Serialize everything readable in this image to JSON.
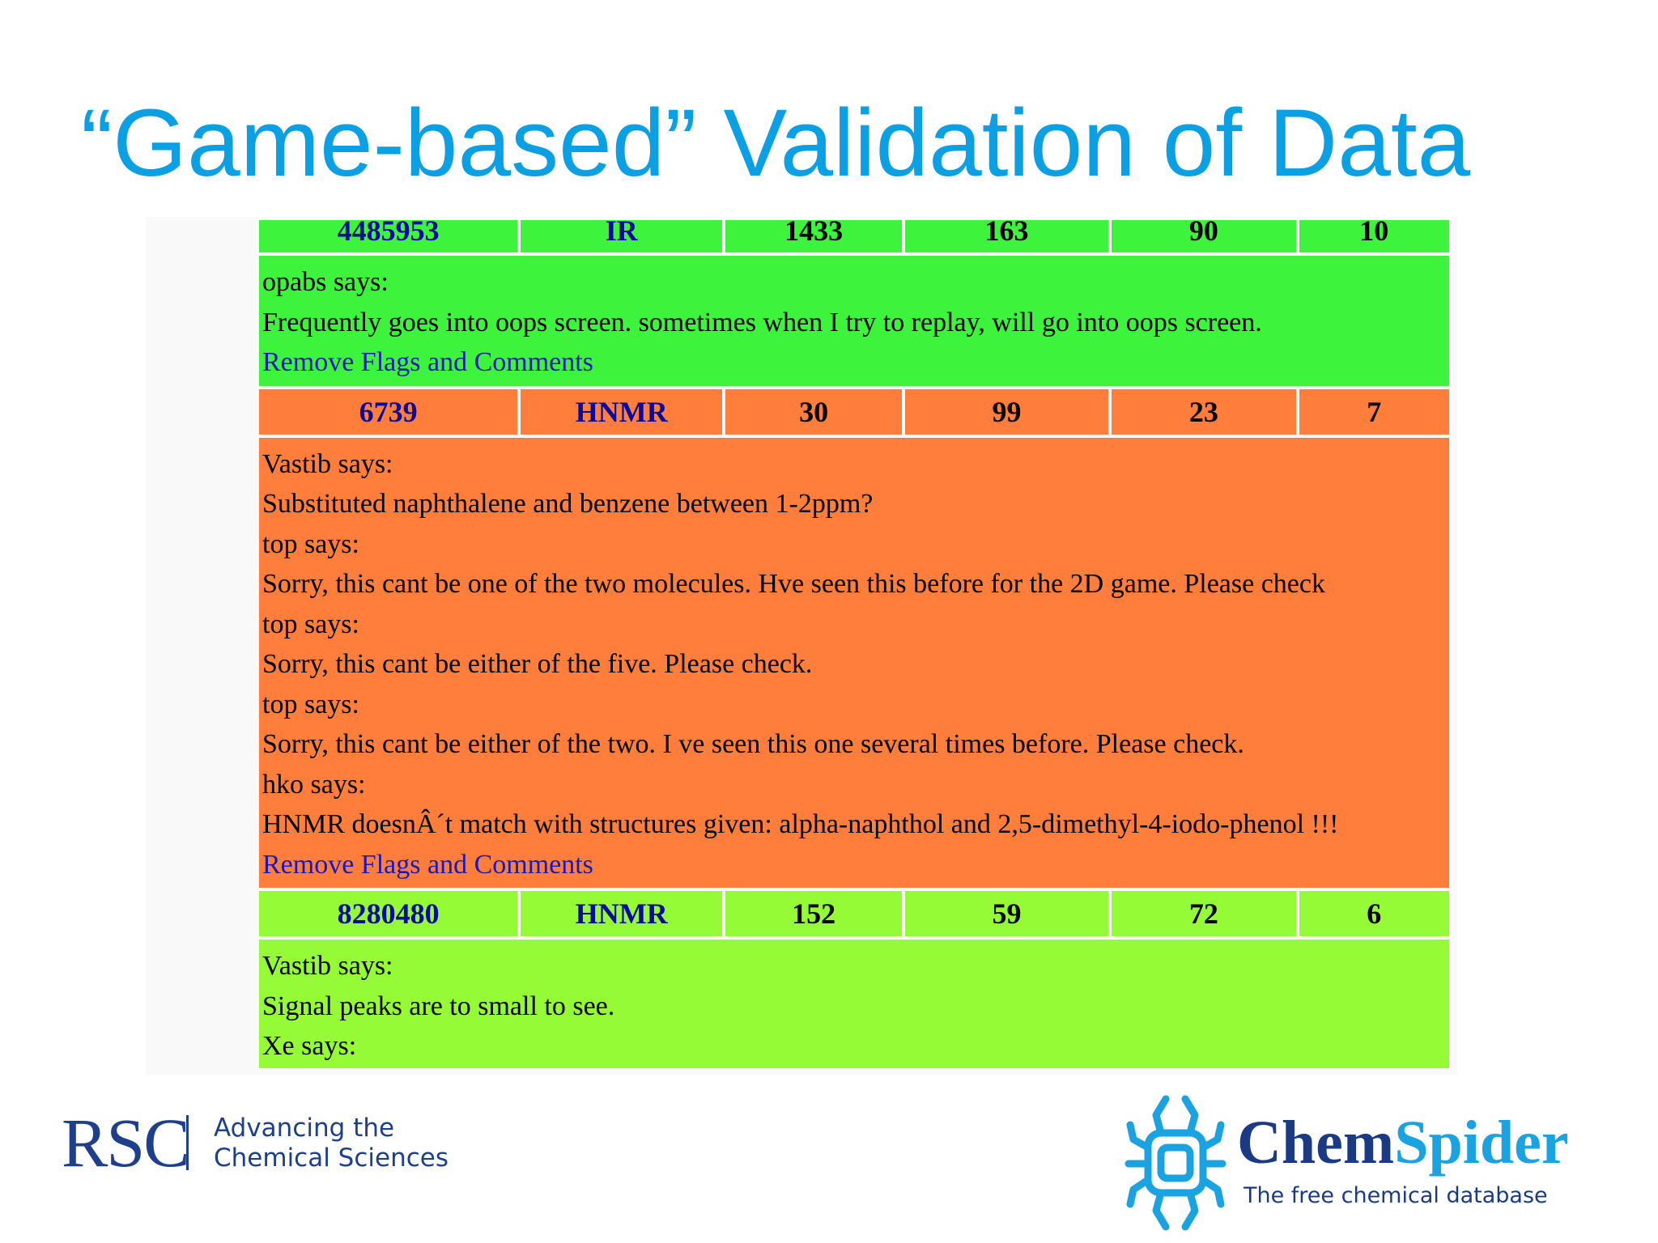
{
  "slide": {
    "title": "“Game-based” Validation of Data"
  },
  "records": [
    {
      "cells": [
        "4485953",
        "IR",
        "1433",
        "163",
        "90",
        "10"
      ],
      "color": "#3ef33b",
      "comment_lines": [
        "opabs says:",
        "Frequently goes into oops screen. sometimes when I try to replay, will go into oops screen."
      ],
      "link": "Remove Flags and Comments"
    },
    {
      "cells": [
        "6739",
        "HNMR",
        "30",
        "99",
        "23",
        "7"
      ],
      "color": "#ff7e3c",
      "comment_lines": [
        "Vastib says:",
        "Substituted naphthalene and benzene between 1-2ppm?",
        "top says:",
        "Sorry, this cant be one of the two molecules. Hve seen this before for the 2D game. Please check",
        "top says:",
        "Sorry, this cant be either of the five. Please check.",
        "top says:",
        "Sorry, this cant be either of the two. I ve seen this one several times before. Please check.",
        "hko says:",
        "HNMR doesnÂ´t match with structures given: alpha-naphthol and 2,5-dimethyl-4-iodo-phenol !!!"
      ],
      "link": "Remove Flags and Comments"
    },
    {
      "cells": [
        "8280480",
        "HNMR",
        "152",
        "59",
        "72",
        "6"
      ],
      "color": "#94fb36",
      "comment_lines": [
        "Vastib says:",
        "Signal peaks are to small to see.",
        "Xe says:"
      ]
    }
  ],
  "logos": {
    "rsc": {
      "mark": "RSC",
      "tagline_1": "Advancing the",
      "tagline_2": "Chemical Sciences",
      "color": "#1d3f8c"
    },
    "chemspider": {
      "name_part_1": "Chem",
      "name_part_2": "Spider",
      "subtitle": "The free chemical database",
      "icon": "spider-icon",
      "colors": [
        "#1b3a84",
        "#1aa3e0"
      ]
    }
  }
}
